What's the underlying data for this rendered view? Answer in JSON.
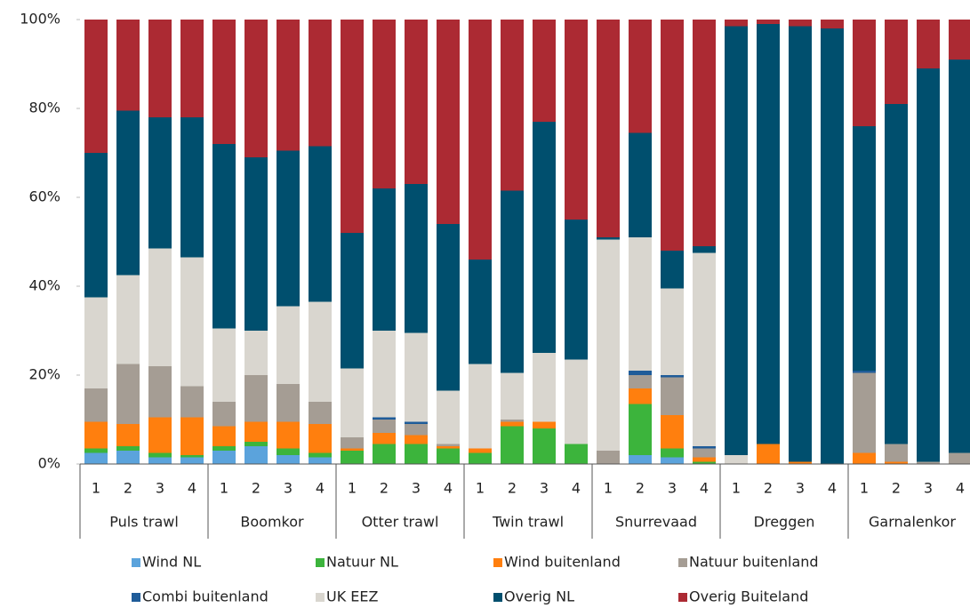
{
  "chart_data": {
    "type": "stacked_bar",
    "categories": [
      "1",
      "2",
      "3",
      "4",
      "1",
      "2",
      "3",
      "4",
      "1",
      "2",
      "3",
      "4",
      "1",
      "2",
      "3",
      "4",
      "1",
      "2",
      "3",
      "4",
      "1",
      "2",
      "3",
      "4",
      "1",
      "2",
      "3",
      "4"
    ],
    "groups": [
      "Puls trawl",
      "Boomkor",
      "Otter trawl",
      "Twin trawl",
      "Snurrevaad",
      "Dreggen",
      "Garnalenkor"
    ],
    "ylim": [
      0,
      100
    ],
    "yticks": [
      {
        "value": 0,
        "label": "0%"
      },
      {
        "value": 20,
        "label": "20%"
      },
      {
        "value": 40,
        "label": "40%"
      },
      {
        "value": 60,
        "label": "60%"
      },
      {
        "value": 80,
        "label": "80%"
      },
      {
        "value": 100,
        "label": "100%"
      }
    ],
    "grid": false,
    "legend": "bottom",
    "series": [
      {
        "name": "Wind NL",
        "color": "#5ba3dc",
        "values": [
          2.5,
          3,
          1.5,
          1.5,
          3,
          4,
          2,
          1.5,
          0,
          0,
          0,
          0,
          0,
          0,
          0,
          0,
          0,
          2,
          1.5,
          0,
          0,
          0,
          0,
          0,
          0,
          0,
          0,
          0
        ]
      },
      {
        "name": "Natuur NL",
        "color": "#3cb43c",
        "values": [
          1,
          1,
          1,
          0.5,
          1,
          1,
          1.5,
          1,
          3,
          4.5,
          4.5,
          3.5,
          2.5,
          8.5,
          8,
          4.5,
          0,
          11.5,
          2,
          0.5,
          0,
          0,
          0,
          0,
          0,
          0,
          0,
          0
        ]
      },
      {
        "name": "Wind buitenland",
        "color": "#ff7f0e",
        "values": [
          6,
          5,
          8,
          8.5,
          4.5,
          4.5,
          6,
          6.5,
          0.5,
          2.5,
          2,
          0.5,
          1,
          1,
          1.5,
          0,
          0,
          3.5,
          7.5,
          1,
          0,
          4.5,
          0.5,
          0,
          2.5,
          0.5,
          0,
          0
        ]
      },
      {
        "name": "Natuur buitenland",
        "color": "#a59d94",
        "values": [
          7.5,
          13.5,
          11.5,
          7,
          5.5,
          10.5,
          8.5,
          5,
          2.5,
          3,
          2.5,
          0.5,
          0,
          0.5,
          0,
          0,
          3,
          3,
          8.5,
          2,
          0,
          0,
          0,
          0,
          18,
          4,
          0.5,
          2.5
        ]
      },
      {
        "name": "Combi buitenland",
        "color": "#1f5c99",
        "values": [
          0,
          0,
          0,
          0,
          0,
          0,
          0,
          0,
          0,
          0.5,
          0.5,
          0,
          0,
          0,
          0,
          0,
          0,
          1,
          0.5,
          0.5,
          0,
          0,
          0,
          0,
          0.5,
          0,
          0,
          0
        ]
      },
      {
        "name": "UK EEZ",
        "color": "#d9d6cf",
        "values": [
          20.5,
          20,
          26.5,
          29,
          16.5,
          10,
          17.5,
          22.5,
          15.5,
          19.5,
          20,
          12,
          19,
          10.5,
          15.5,
          19,
          47.5,
          30,
          19.5,
          43.5,
          2,
          0,
          0,
          0,
          0,
          0,
          0,
          0
        ]
      },
      {
        "name": "Overig NL",
        "color": "#004f6e",
        "values": [
          32.5,
          37,
          29.5,
          31.5,
          41.5,
          39,
          35,
          35,
          30.5,
          32,
          33.5,
          37.5,
          23.5,
          41,
          52,
          31.5,
          0.5,
          23.5,
          8.5,
          1.5,
          96.5,
          94.5,
          98,
          98,
          55,
          76.5,
          88.5,
          88.5
        ]
      },
      {
        "name": "Overig Buiteland",
        "color": "#ac2a33",
        "values": [
          30,
          20.5,
          22,
          22,
          28,
          31,
          29.5,
          28.5,
          48,
          38,
          37,
          46,
          54,
          38.5,
          23,
          45,
          49,
          25.5,
          52,
          51,
          1.5,
          1,
          1.5,
          2,
          24,
          19,
          11,
          9
        ]
      }
    ]
  }
}
